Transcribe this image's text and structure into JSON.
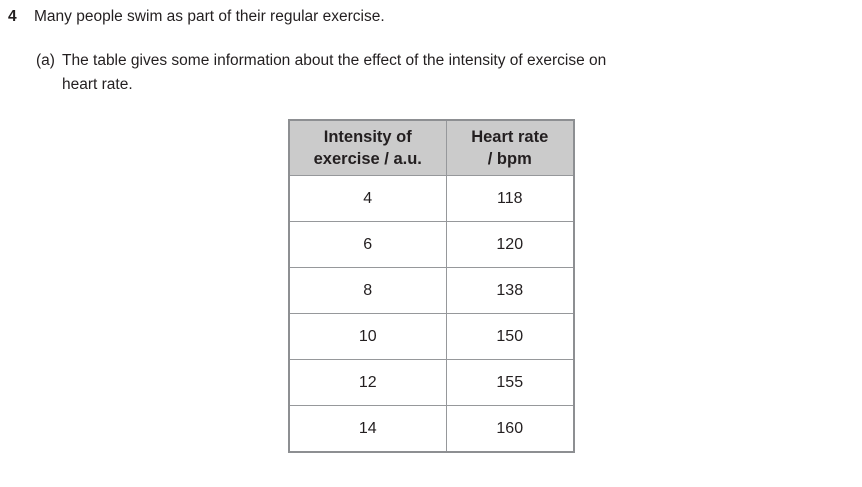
{
  "question": {
    "number": "4",
    "text": "Many people swim as part of their regular exercise."
  },
  "part_a": {
    "label": "(a)",
    "line1": "The table gives some information about the effect of the intensity of exercise on",
    "line2": "heart rate."
  },
  "table": {
    "headers": [
      {
        "line1": "Intensity of",
        "line2": "exercise / a.u."
      },
      {
        "line1": "Heart rate",
        "line2": "/ bpm"
      }
    ],
    "rows": [
      [
        "4",
        "118"
      ],
      [
        "6",
        "120"
      ],
      [
        "8",
        "138"
      ],
      [
        "10",
        "150"
      ],
      [
        "12",
        "155"
      ],
      [
        "14",
        "160"
      ]
    ]
  },
  "chart_data": {
    "type": "table",
    "columns": [
      "Intensity of exercise / a.u.",
      "Heart rate / bpm"
    ],
    "rows": [
      [
        4,
        118
      ],
      [
        6,
        120
      ],
      [
        8,
        138
      ],
      [
        10,
        150
      ],
      [
        12,
        155
      ],
      [
        14,
        160
      ]
    ],
    "title": ""
  },
  "colors": {
    "header_bg": "#cbcbcb",
    "border_outer": "#8d8f92",
    "border_inner": "#96989b",
    "text": "#231f20",
    "page_bg": "#ffffff"
  }
}
